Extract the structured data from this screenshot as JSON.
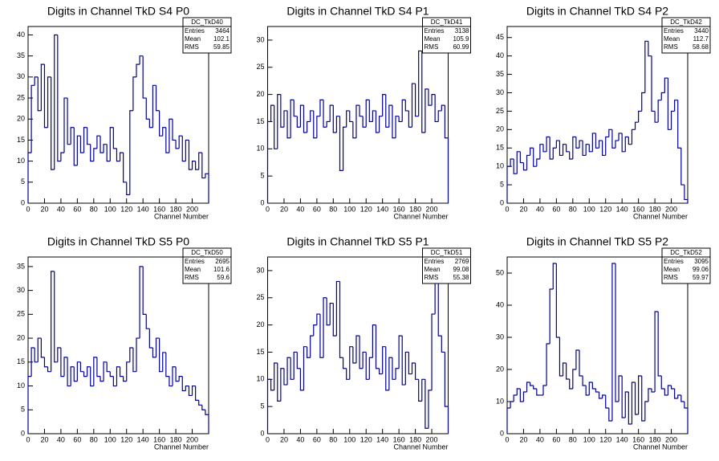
{
  "chart_data": [
    {
      "type": "histogram",
      "title": "Digits in Channel TkD S4 P0",
      "x_label": "Channel Number",
      "color": "#000099",
      "bins": [
        0,
        4,
        8,
        12,
        16,
        20,
        24,
        28,
        32,
        36,
        40,
        44,
        48,
        52,
        56,
        60,
        64,
        68,
        72,
        76,
        80,
        84,
        88,
        92,
        96,
        100,
        104,
        108,
        112,
        116,
        120,
        124,
        128,
        132,
        136,
        140,
        144,
        148,
        152,
        156,
        160,
        164,
        168,
        172,
        176,
        180,
        184,
        188,
        192,
        196,
        200,
        204,
        208,
        212,
        216,
        220
      ],
      "counts": [
        12,
        28,
        30,
        22,
        33,
        18,
        30,
        8,
        40,
        10,
        12,
        25,
        14,
        18,
        9,
        16,
        12,
        18,
        14,
        10,
        13,
        16,
        12,
        14,
        10,
        18,
        13,
        10,
        12,
        5,
        2,
        22,
        30,
        33,
        35,
        25,
        20,
        18,
        28,
        22,
        16,
        18,
        12,
        20,
        15,
        13,
        16,
        10,
        15,
        8,
        10,
        8,
        12,
        6,
        7
      ],
      "xlim": [
        0,
        220
      ],
      "xticks": [
        0,
        20,
        40,
        60,
        80,
        100,
        120,
        140,
        160,
        180,
        200
      ],
      "ylim": [
        0,
        42
      ],
      "yticks": [
        0,
        5,
        10,
        15,
        20,
        25,
        30,
        35,
        40
      ],
      "stats": {
        "name": "DC_TkD40",
        "labels": [
          "Entries",
          "Mean",
          "RMS"
        ],
        "values": [
          3464,
          102.1,
          59.85
        ]
      }
    },
    {
      "type": "histogram",
      "title": "Digits in Channel TkD S4 P1",
      "x_label": "Channel Number",
      "color": "#000099",
      "bins": [
        0,
        4,
        8,
        12,
        16,
        20,
        24,
        28,
        32,
        36,
        40,
        44,
        48,
        52,
        56,
        60,
        64,
        68,
        72,
        76,
        80,
        84,
        88,
        92,
        96,
        100,
        104,
        108,
        112,
        116,
        120,
        124,
        128,
        132,
        136,
        140,
        144,
        148,
        152,
        156,
        160,
        164,
        168,
        172,
        176,
        180,
        184,
        188,
        192,
        196,
        200,
        204,
        208,
        212,
        216,
        220
      ],
      "counts": [
        15,
        18,
        10,
        20,
        14,
        17,
        12,
        19,
        16,
        14,
        18,
        13,
        15,
        17,
        12,
        16,
        19,
        14,
        15,
        18,
        13,
        16,
        6,
        14,
        17,
        15,
        12,
        18,
        16,
        14,
        19,
        15,
        17,
        13,
        16,
        20,
        14,
        18,
        12,
        16,
        15,
        19,
        17,
        14,
        22,
        16,
        28,
        13,
        21,
        18,
        20,
        15,
        17,
        18,
        12
      ],
      "xlim": [
        0,
        220
      ],
      "xticks": [
        0,
        20,
        40,
        60,
        80,
        100,
        120,
        140,
        160,
        180,
        200
      ],
      "ylim": [
        0,
        32.5
      ],
      "yticks": [
        0,
        5,
        10,
        15,
        20,
        25,
        30
      ],
      "stats": {
        "name": "DC_TkD41",
        "labels": [
          "Entries",
          "Mean",
          "RMS"
        ],
        "values": [
          3138,
          105.9,
          60.99
        ]
      }
    },
    {
      "type": "histogram",
      "title": "Digits in Channel TkD S4 P2",
      "x_label": "Channel Number",
      "color": "#000099",
      "bins": [
        0,
        4,
        8,
        12,
        16,
        20,
        24,
        28,
        32,
        36,
        40,
        44,
        48,
        52,
        56,
        60,
        64,
        68,
        72,
        76,
        80,
        84,
        88,
        92,
        96,
        100,
        104,
        108,
        112,
        116,
        120,
        124,
        128,
        132,
        136,
        140,
        144,
        148,
        152,
        156,
        160,
        164,
        168,
        172,
        176,
        180,
        184,
        188,
        192,
        196,
        200,
        204,
        208,
        212,
        216,
        220
      ],
      "counts": [
        10,
        12,
        8,
        14,
        11,
        9,
        13,
        15,
        10,
        12,
        16,
        14,
        18,
        12,
        15,
        17,
        13,
        16,
        14,
        12,
        18,
        15,
        17,
        13,
        16,
        14,
        19,
        15,
        17,
        13,
        18,
        20,
        15,
        17,
        19,
        14,
        18,
        16,
        20,
        22,
        25,
        30,
        44,
        40,
        25,
        22,
        28,
        30,
        34,
        20,
        25,
        28,
        15,
        5,
        1
      ],
      "xlim": [
        0,
        220
      ],
      "xticks": [
        0,
        20,
        40,
        60,
        80,
        100,
        120,
        140,
        160,
        180,
        200
      ],
      "ylim": [
        0,
        48
      ],
      "yticks": [
        0,
        5,
        10,
        15,
        20,
        25,
        30,
        35,
        40,
        45
      ],
      "stats": {
        "name": "DC_TkD42",
        "labels": [
          "Entries",
          "Mean",
          "RMS"
        ],
        "values": [
          3440,
          112.7,
          58.68
        ]
      }
    },
    {
      "type": "histogram",
      "title": "Digits in Channel TkD S5 P0",
      "x_label": "Channel Number",
      "color": "#000099",
      "bins": [
        0,
        4,
        8,
        12,
        16,
        20,
        24,
        28,
        32,
        36,
        40,
        44,
        48,
        52,
        56,
        60,
        64,
        68,
        72,
        76,
        80,
        84,
        88,
        92,
        96,
        100,
        104,
        108,
        112,
        116,
        120,
        124,
        128,
        132,
        136,
        140,
        144,
        148,
        152,
        156,
        160,
        164,
        168,
        172,
        176,
        180,
        184,
        188,
        192,
        196,
        200,
        204,
        208,
        212,
        216,
        220
      ],
      "counts": [
        12,
        18,
        15,
        20,
        16,
        14,
        13,
        34,
        15,
        18,
        12,
        16,
        10,
        14,
        11,
        15,
        13,
        12,
        14,
        10,
        16,
        12,
        11,
        15,
        13,
        12,
        10,
        14,
        12,
        11,
        15,
        18,
        13,
        20,
        35,
        25,
        22,
        18,
        16,
        20,
        13,
        17,
        12,
        10,
        14,
        11,
        12,
        9,
        10,
        8,
        10,
        7,
        6,
        5,
        4
      ],
      "xlim": [
        0,
        220
      ],
      "xticks": [
        0,
        20,
        40,
        60,
        80,
        100,
        120,
        140,
        160,
        180,
        200
      ],
      "ylim": [
        0,
        37
      ],
      "yticks": [
        0,
        5,
        10,
        15,
        20,
        25,
        30,
        35
      ],
      "stats": {
        "name": "DC_TkD50",
        "labels": [
          "Entries",
          "Mean",
          "RMS"
        ],
        "values": [
          2695,
          101.6,
          59.6
        ]
      }
    },
    {
      "type": "histogram",
      "title": "Digits in Channel TkD S5 P1",
      "x_label": "Channel Number",
      "color": "#000099",
      "bins": [
        0,
        4,
        8,
        12,
        16,
        20,
        24,
        28,
        32,
        36,
        40,
        44,
        48,
        52,
        56,
        60,
        64,
        68,
        72,
        76,
        80,
        84,
        88,
        92,
        96,
        100,
        104,
        108,
        112,
        116,
        120,
        124,
        128,
        132,
        136,
        140,
        144,
        148,
        152,
        156,
        160,
        164,
        168,
        172,
        176,
        180,
        184,
        188,
        192,
        196,
        200,
        204,
        208,
        212,
        216,
        220
      ],
      "counts": [
        10,
        8,
        13,
        6,
        12,
        9,
        14,
        10,
        15,
        12,
        8,
        16,
        14,
        18,
        20,
        22,
        14,
        25,
        20,
        24,
        18,
        28,
        14,
        12,
        10,
        16,
        13,
        18,
        12,
        15,
        10,
        14,
        20,
        12,
        11,
        16,
        8,
        14,
        10,
        12,
        18,
        9,
        15,
        11,
        13,
        10,
        6,
        10,
        1,
        8,
        22,
        31,
        18,
        15,
        5
      ],
      "xlim": [
        0,
        220
      ],
      "xticks": [
        0,
        20,
        40,
        60,
        80,
        100,
        120,
        140,
        160,
        180,
        200
      ],
      "ylim": [
        0,
        32.5
      ],
      "yticks": [
        0,
        5,
        10,
        15,
        20,
        25,
        30
      ],
      "stats": {
        "name": "DC_TkD51",
        "labels": [
          "Entries",
          "Mean",
          "RMS"
        ],
        "values": [
          2769,
          99.08,
          55.38
        ]
      }
    },
    {
      "type": "histogram",
      "title": "Digits in Channel TkD S5 P2",
      "x_label": "Channel Number",
      "color": "#000099",
      "bins": [
        0,
        4,
        8,
        12,
        16,
        20,
        24,
        28,
        32,
        36,
        40,
        44,
        48,
        52,
        56,
        60,
        64,
        68,
        72,
        76,
        80,
        84,
        88,
        92,
        96,
        100,
        104,
        108,
        112,
        116,
        120,
        124,
        128,
        132,
        136,
        140,
        144,
        148,
        152,
        156,
        160,
        164,
        168,
        172,
        176,
        180,
        184,
        188,
        192,
        196,
        200,
        204,
        208,
        212,
        216,
        220
      ],
      "counts": [
        8,
        10,
        12,
        14,
        10,
        13,
        16,
        15,
        14,
        12,
        12,
        15,
        28,
        45,
        53,
        30,
        18,
        22,
        17,
        14,
        20,
        26,
        18,
        15,
        12,
        16,
        14,
        13,
        11,
        12,
        8,
        4,
        53,
        10,
        18,
        5,
        13,
        3,
        16,
        6,
        18,
        4,
        10,
        14,
        13,
        38,
        18,
        14,
        12,
        15,
        14,
        11,
        12,
        10,
        8
      ],
      "xlim": [
        0,
        220
      ],
      "xticks": [
        0,
        20,
        40,
        60,
        80,
        100,
        120,
        140,
        160,
        180,
        200
      ],
      "ylim": [
        0,
        55
      ],
      "yticks": [
        0,
        10,
        20,
        30,
        40,
        50
      ],
      "stats": {
        "name": "DC_TkD52",
        "labels": [
          "Entries",
          "Mean",
          "RMS"
        ],
        "values": [
          3095,
          99.06,
          59.97
        ]
      }
    }
  ]
}
